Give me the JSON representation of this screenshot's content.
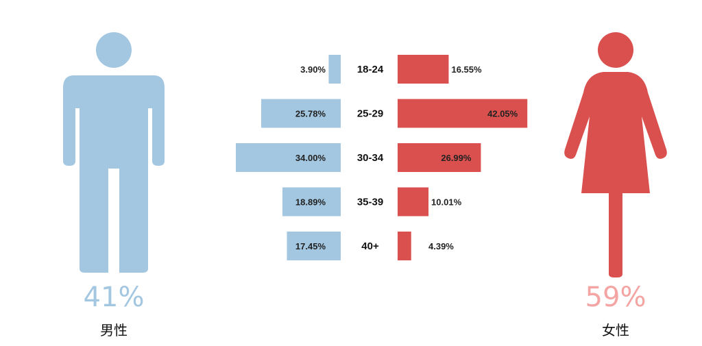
{
  "chart_data": {
    "type": "bar",
    "categories": [
      "18-24",
      "25-29",
      "30-34",
      "35-39",
      "40+"
    ],
    "series": [
      {
        "name": "男性",
        "values": [
          3.9,
          25.78,
          34.0,
          18.89,
          17.45
        ],
        "labels": [
          "3.90%",
          "25.78%",
          "34.00%",
          "18.89%",
          "17.45%"
        ],
        "total": "41%",
        "color": "#A3C7E1",
        "total_color": "#A3C7E1",
        "icon": "male-figure-icon"
      },
      {
        "name": "女性",
        "values": [
          16.55,
          42.05,
          26.99,
          10.01,
          4.39
        ],
        "labels": [
          "16.55%",
          "42.05%",
          "26.99%",
          "10.01%",
          "4.39%"
        ],
        "total": "59%",
        "color": "#D9504E",
        "total_color": "#F4A5A3",
        "icon": "female-figure-icon"
      }
    ],
    "title": "",
    "xlabel": "",
    "ylabel": ""
  }
}
